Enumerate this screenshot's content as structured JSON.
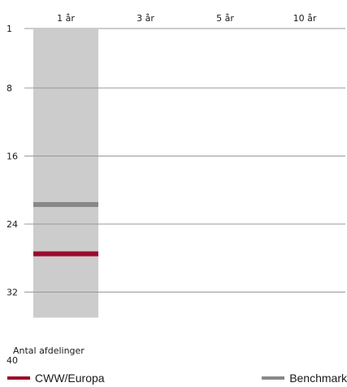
{
  "chart_data": {
    "type": "bar",
    "categories": [
      "1 år",
      "3 år",
      "5 år",
      "10 år"
    ],
    "y_ticks": [
      1,
      8,
      16,
      24,
      32,
      40
    ],
    "ylim": [
      1,
      40
    ],
    "y_inverted": true,
    "ylabel": "Antal afdelinger",
    "bar": {
      "category": "1 år",
      "from": 1,
      "to": 35,
      "color": "#cccccc"
    },
    "series": [
      {
        "name": "CWW/Europa",
        "category": "1 år",
        "value": 27.5,
        "color": "#9b0a2e"
      },
      {
        "name": "Benchmark",
        "category": "1 år",
        "value": 21.7,
        "color": "#888888"
      }
    ],
    "grid": true
  }
}
